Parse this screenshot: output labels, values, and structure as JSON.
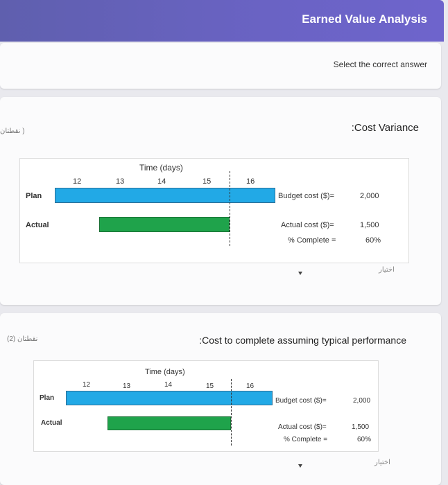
{
  "header": {
    "title": "Earned Value Analysis",
    "accent": "#6a63c4"
  },
  "instructions": "Select the correct answer",
  "questions": [
    {
      "title": ":Cost Variance",
      "points": "نقطتان )",
      "figure": {
        "axis_title": "Time (days)",
        "ticks": [
          "12",
          "13",
          "14",
          "15",
          "16"
        ],
        "plan_label": "Plan",
        "actual_label": "Actual",
        "budget_label": "Budget cost ($)=",
        "budget_value": "2,000",
        "actual_cost_label": "Actual cost ($)=",
        "actual_cost_value": "1,500",
        "complete_label": "% Complete =",
        "complete_value": "60%"
      },
      "choose_label": "اختيار"
    },
    {
      "title": ":Cost to complete assuming typical performance",
      "points": "نقطتان (2)",
      "figure": {
        "axis_title": "Time (days)",
        "ticks": [
          "12",
          "13",
          "14",
          "15",
          "16"
        ],
        "plan_label": "Plan",
        "actual_label": "Actual",
        "budget_label": "Budget cost ($)=",
        "budget_value": "2,000",
        "actual_cost_label": "Actual cost ($)=",
        "actual_cost_value": "1,500",
        "complete_label": "% Complete =",
        "complete_value": "60%"
      },
      "choose_label": "اختيار"
    }
  ]
}
